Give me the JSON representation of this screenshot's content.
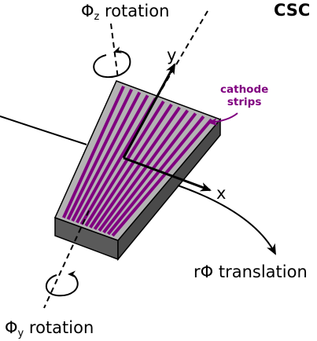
{
  "diagram": {
    "title": "CSC",
    "phi_z_rotation": {
      "symbol": "Φ",
      "subscript": "z",
      "text": " rotation"
    },
    "phi_y_rotation": {
      "symbol": "Φ",
      "subscript": "y",
      "text": " rotation"
    },
    "y_axis_label": "y",
    "x_axis_label": "x",
    "rphi_translation_label": "rΦ translation",
    "cathode_label_line1": "cathode",
    "cathode_label_line2": "strips",
    "strip_count": 12,
    "colors": {
      "chamber_face": "#b3b3b3",
      "chamber_side": "#5a5a5a",
      "chamber_side_dark": "#4a4a4a",
      "strip": "#800080",
      "annotation": "#800080",
      "line": "#000000"
    }
  }
}
